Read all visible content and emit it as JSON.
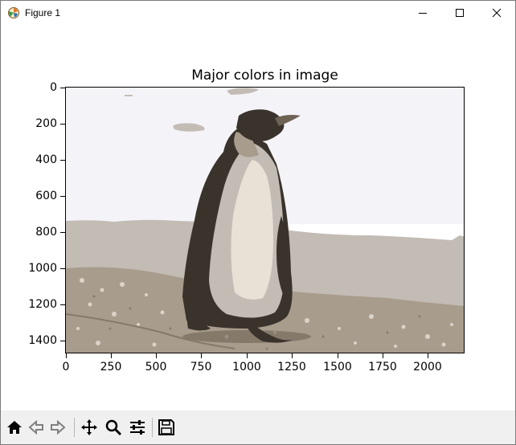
{
  "window": {
    "title": "Figure 1",
    "controls": [
      "minimize-icon",
      "maximize-icon",
      "close-icon"
    ]
  },
  "plot": {
    "title": "Major colors in image",
    "image": "quantized photo of a king penguin walking on a beach",
    "palette": [
      "#f4f4f8",
      "#c3bcb5",
      "#a89c8c",
      "#6e6254",
      "#3a332c",
      "#e9e1d6"
    ],
    "xticks": [
      "0",
      "250",
      "500",
      "750",
      "1000",
      "1250",
      "1500",
      "1750",
      "2000"
    ],
    "yticks": [
      "0",
      "200",
      "400",
      "600",
      "800",
      "1000",
      "1200",
      "1400"
    ],
    "xlim": [
      0,
      2200
    ],
    "ylim": [
      1467,
      0
    ]
  },
  "toolbar": {
    "buttons": [
      {
        "name": "home-icon"
      },
      {
        "name": "back-icon"
      },
      {
        "name": "forward-icon"
      },
      {
        "name": "pan-icon"
      },
      {
        "name": "zoom-icon"
      },
      {
        "name": "configure-subplots-icon"
      },
      {
        "name": "save-icon"
      }
    ]
  }
}
